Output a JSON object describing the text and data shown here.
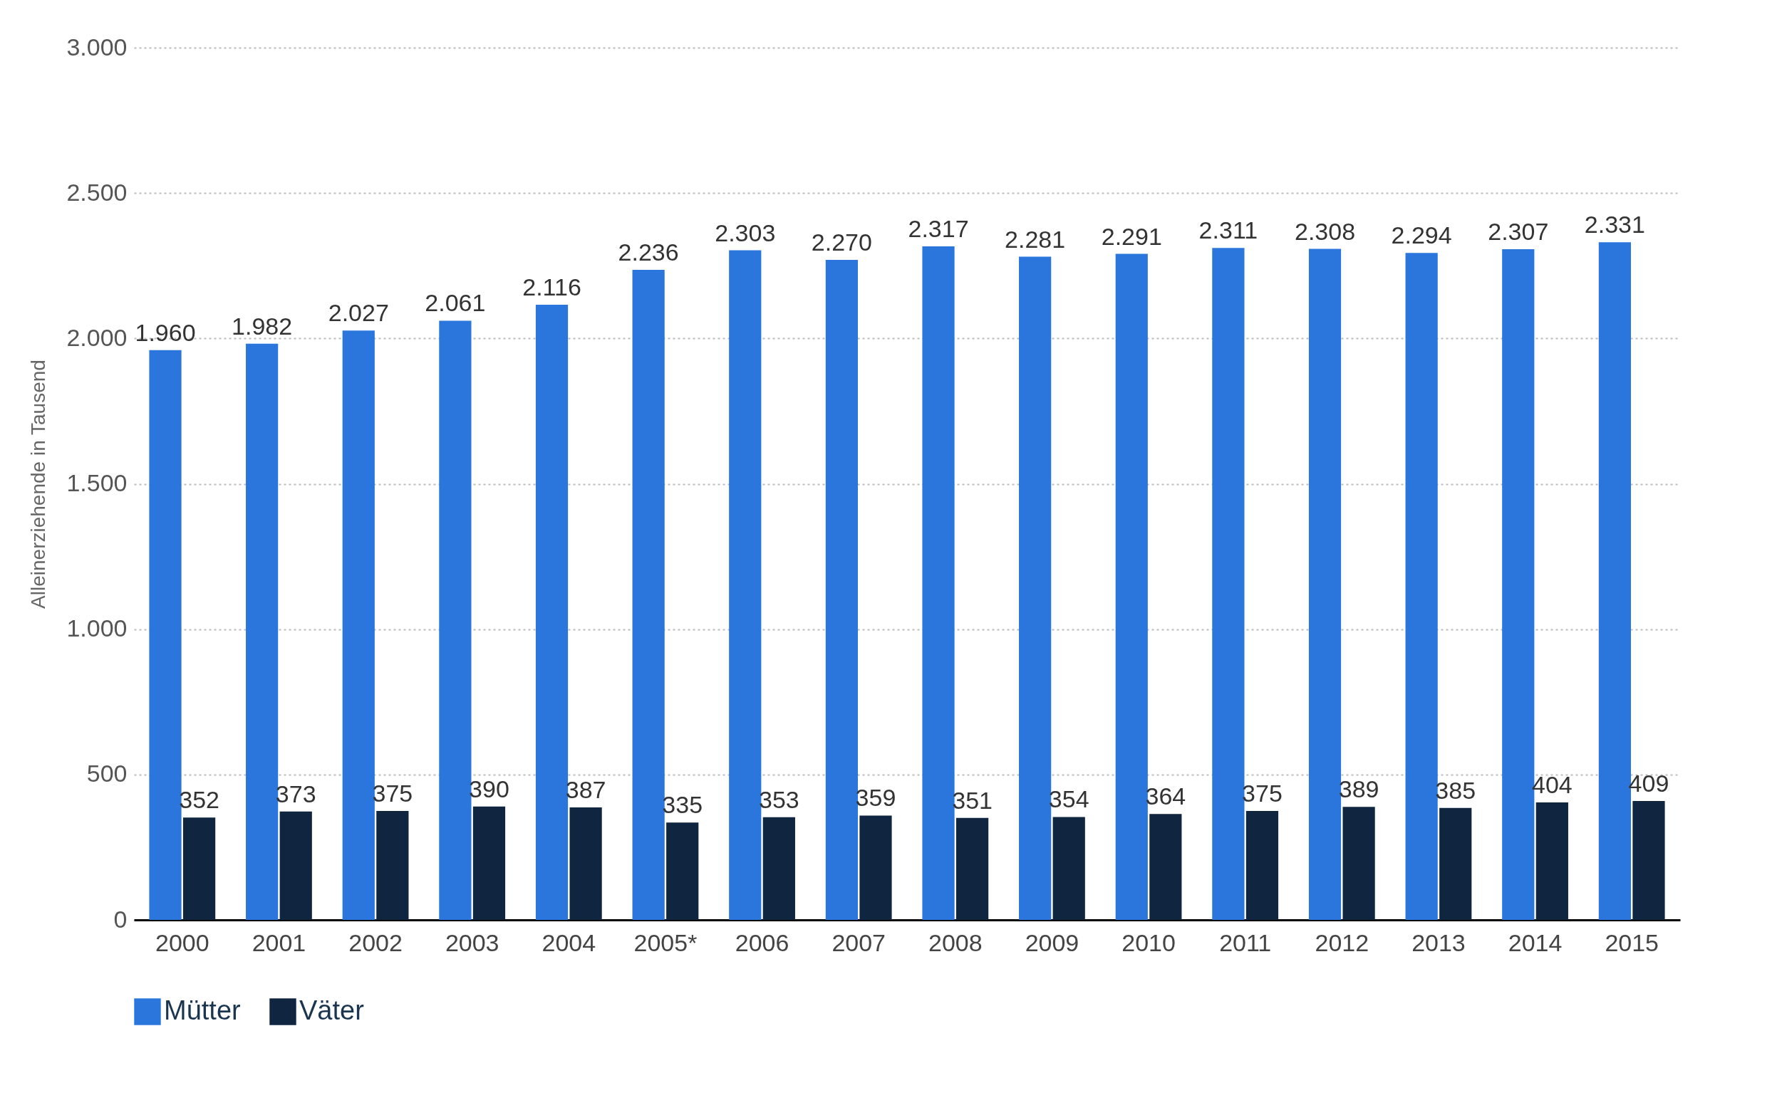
{
  "chart_data": {
    "type": "bar",
    "ylabel": "Alleinerziehende in Tausend",
    "categories": [
      "2000",
      "2001",
      "2002",
      "2003",
      "2004",
      "2005*",
      "2006",
      "2007",
      "2008",
      "2009",
      "2010",
      "2011",
      "2012",
      "2013",
      "2014",
      "2015"
    ],
    "series": [
      {
        "name": "Mütter",
        "color": "#2a76dd",
        "values": [
          1960,
          1982,
          2027,
          2061,
          2116,
          2236,
          2303,
          2270,
          2317,
          2281,
          2291,
          2311,
          2308,
          2294,
          2307,
          2331
        ],
        "value_labels": [
          "1.960",
          "1.982",
          "2.027",
          "2.061",
          "2.116",
          "2.236",
          "2.303",
          "2.270",
          "2.317",
          "2.281",
          "2.291",
          "2.311",
          "2.308",
          "2.294",
          "2.307",
          "2.331"
        ]
      },
      {
        "name": "Väter",
        "color": "#0f2540",
        "values": [
          352,
          373,
          375,
          390,
          387,
          335,
          353,
          359,
          351,
          354,
          364,
          375,
          389,
          385,
          404,
          409
        ],
        "value_labels": [
          "352",
          "373",
          "375",
          "390",
          "387",
          "335",
          "353",
          "359",
          "351",
          "354",
          "364",
          "375",
          "389",
          "385",
          "404",
          "409"
        ]
      }
    ],
    "ylim": [
      0,
      3000
    ],
    "yticks": [
      {
        "value": 0,
        "label": "0"
      },
      {
        "value": 500,
        "label": "500"
      },
      {
        "value": 1000,
        "label": "1.000"
      },
      {
        "value": 1500,
        "label": "1.500"
      },
      {
        "value": 2000,
        "label": "2.000"
      },
      {
        "value": 2500,
        "label": "2.500"
      },
      {
        "value": 3000,
        "label": "3.000"
      }
    ],
    "grid": "y",
    "legend": "bottom"
  }
}
